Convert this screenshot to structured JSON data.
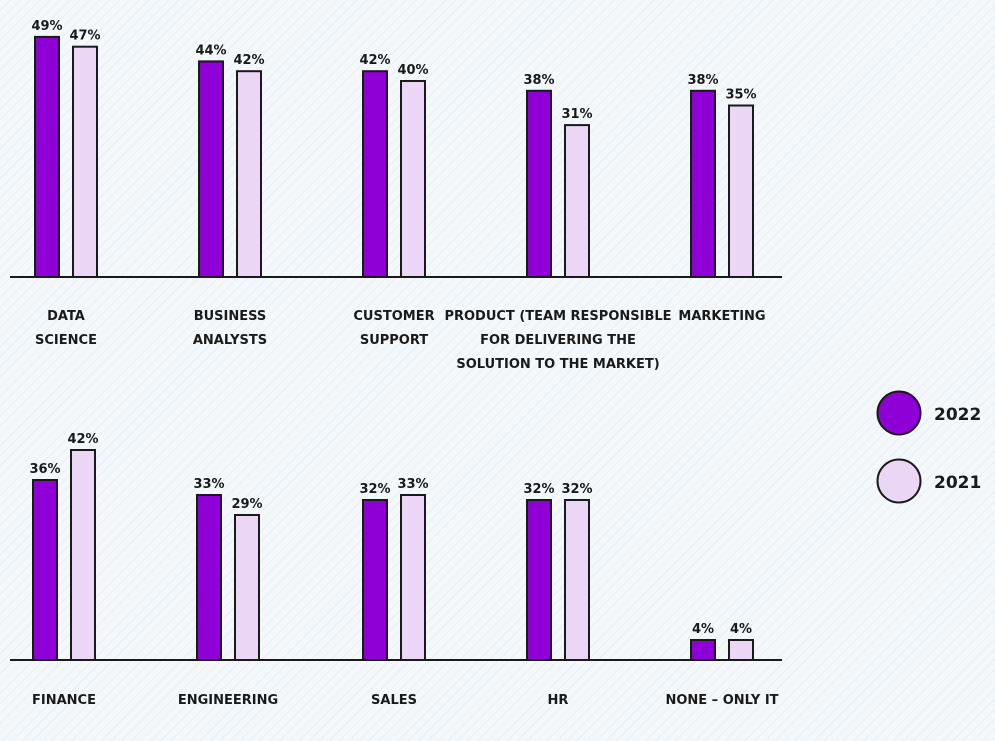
{
  "chart_data": [
    {
      "type": "bar",
      "categories": [
        [
          "DATA",
          "SCIENCE"
        ],
        [
          "BUSINESS",
          "ANALYSTS"
        ],
        [
          "CUSTOMER",
          "SUPPORT"
        ],
        [
          "PRODUCT (TEAM RESPONSIBLE",
          "FOR DELIVERING THE",
          "SOLUTION TO THE MARKET)"
        ],
        [
          "MARKETING"
        ]
      ],
      "series": [
        {
          "name": "2022",
          "values": [
            49,
            44,
            42,
            38,
            38
          ],
          "labels": [
            "49%",
            "44%",
            "42%",
            "38%",
            "38%"
          ]
        },
        {
          "name": "2021",
          "values": [
            47,
            42,
            40,
            31,
            35
          ],
          "labels": [
            "47%",
            "42%",
            "40%",
            "31%",
            "35%"
          ]
        }
      ],
      "ylim": [
        0,
        50
      ]
    },
    {
      "type": "bar",
      "categories": [
        [
          "FINANCE"
        ],
        [
          "ENGINEERING"
        ],
        [
          "SALES"
        ],
        [
          "HR"
        ],
        [
          "NONE – ONLY IT"
        ]
      ],
      "series": [
        {
          "name": "2022",
          "values": [
            36,
            33,
            32,
            32,
            4
          ],
          "labels": [
            "36%",
            "33%",
            "32%",
            "32%",
            "4%"
          ]
        },
        {
          "name": "2021",
          "values": [
            42,
            29,
            33,
            32,
            4
          ],
          "labels": [
            "42%",
            "29%",
            "33%",
            "32%",
            "4%"
          ]
        }
      ],
      "ylim": [
        0,
        50
      ]
    }
  ],
  "legend": {
    "items": [
      {
        "label": "2022",
        "color": "#8f00d6"
      },
      {
        "label": "2021",
        "color": "#ecd6f6"
      }
    ],
    "placement": "right"
  }
}
